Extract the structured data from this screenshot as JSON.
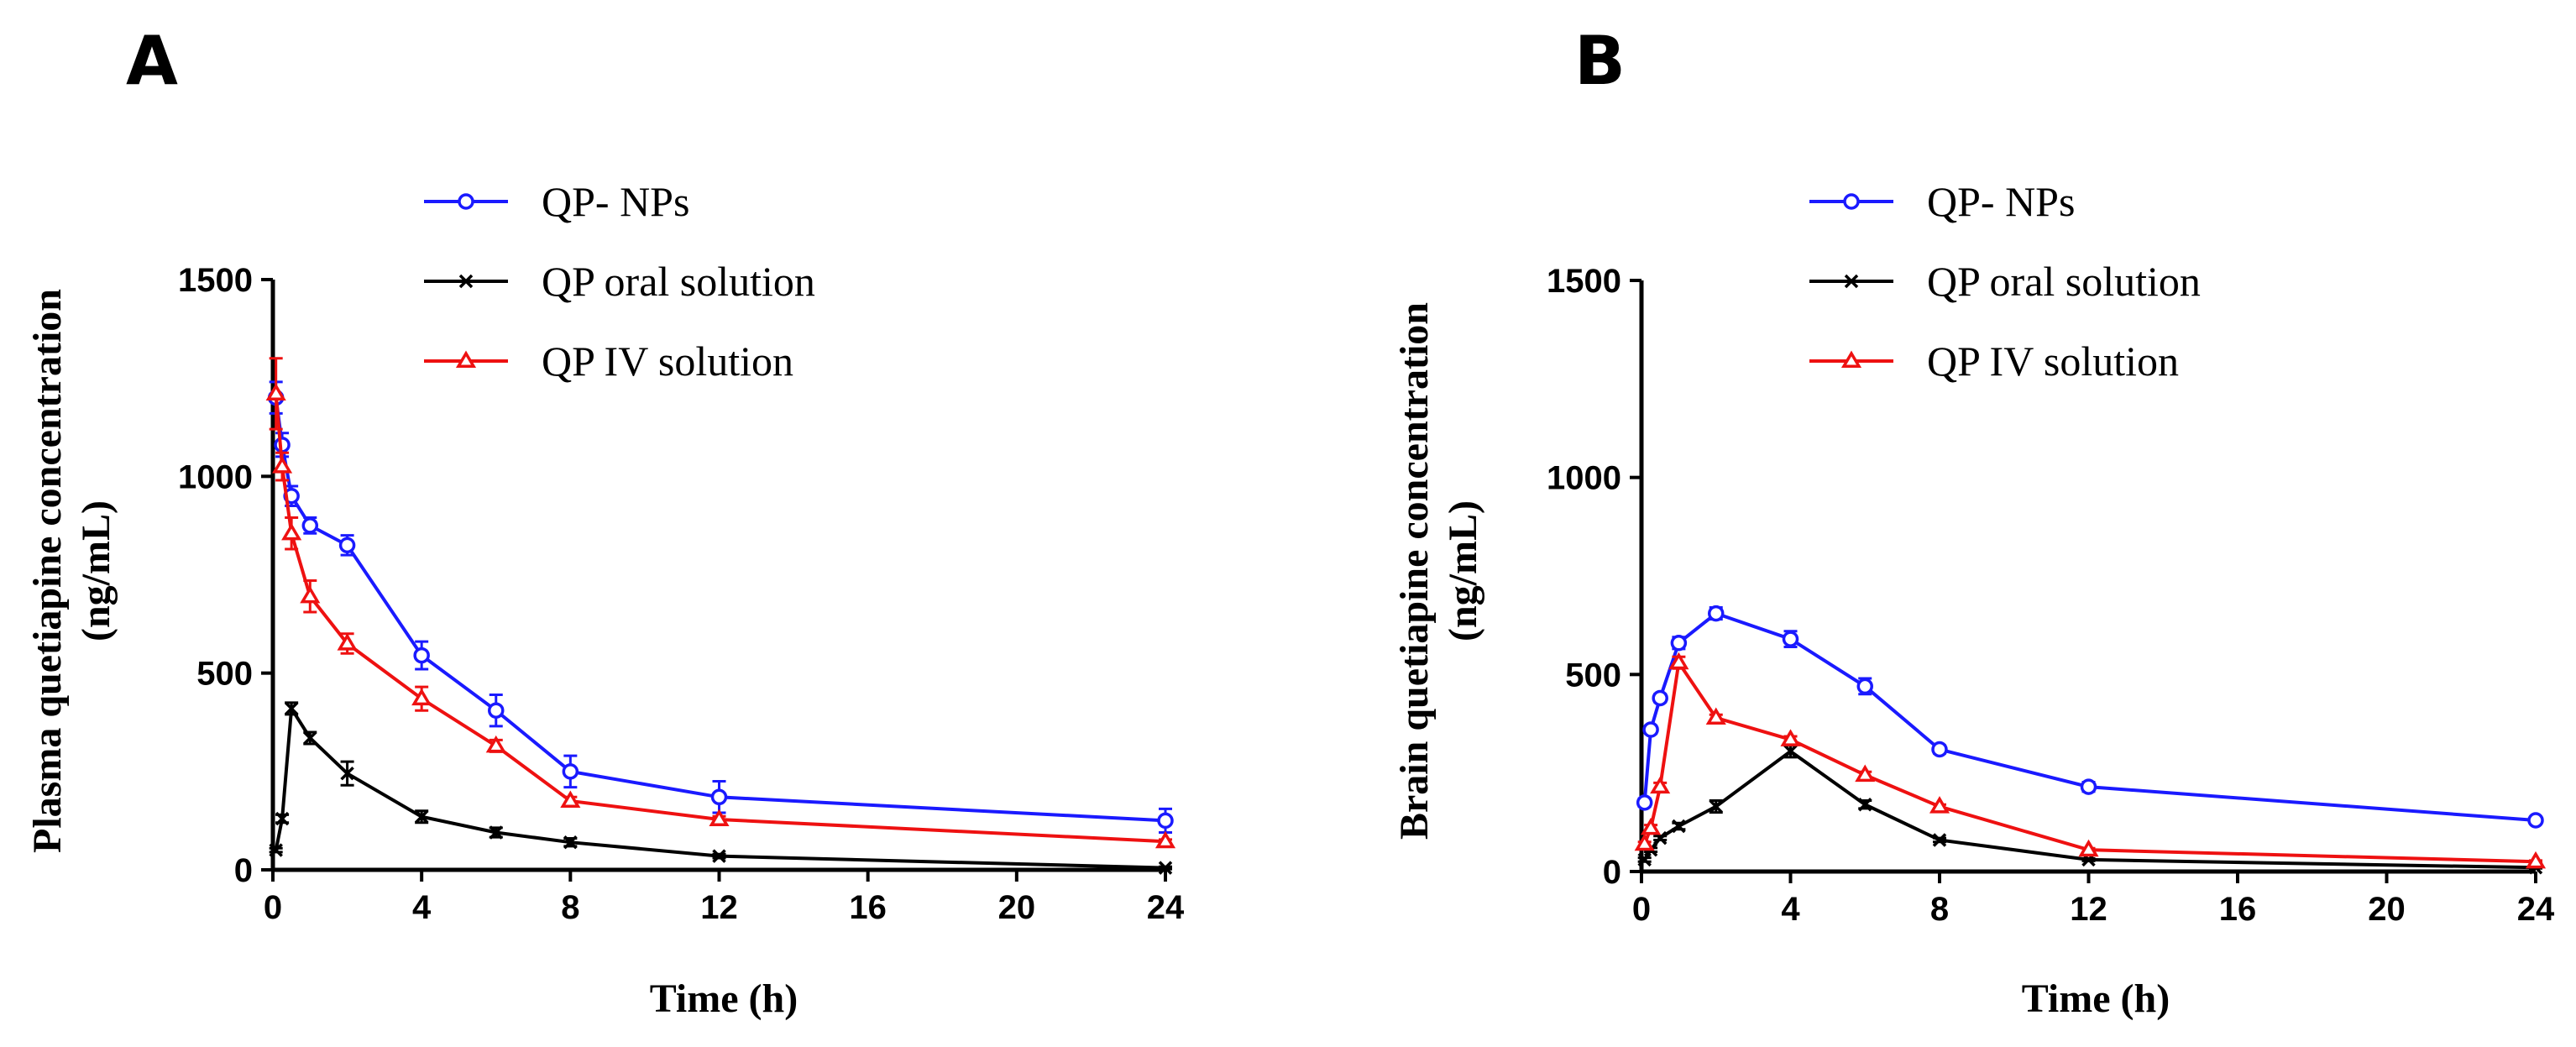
{
  "chart_data": [
    {
      "type": "line",
      "panel_label": "A",
      "xlabel": "Time (h)",
      "ylabel_lines": [
        "Plasma quetiapine concentration",
        "(ng/mL)"
      ],
      "xlim": [
        0,
        24
      ],
      "ylim": [
        0,
        1500
      ],
      "xticks": [
        0,
        4,
        8,
        12,
        16,
        20,
        24
      ],
      "yticks": [
        0,
        500,
        1000,
        1500
      ],
      "legend_position": "top-center",
      "series": [
        {
          "name": "QP- NPs",
          "color": "#1a1aff",
          "marker": "circle",
          "x": [
            0.083,
            0.25,
            0.5,
            1,
            2,
            4,
            6,
            8,
            12,
            24
          ],
          "y": [
            1200,
            1080,
            950,
            875,
            825,
            545,
            405,
            250,
            185,
            125
          ],
          "err": [
            40,
            30,
            25,
            20,
            25,
            35,
            40,
            40,
            40,
            30
          ]
        },
        {
          "name": "QP oral solution",
          "color": "#000000",
          "marker": "x",
          "x": [
            0.083,
            0.25,
            0.5,
            1,
            2,
            4,
            6,
            8,
            12,
            24
          ],
          "y": [
            50,
            130,
            410,
            335,
            245,
            135,
            95,
            70,
            35,
            5
          ],
          "err": [
            5,
            10,
            15,
            15,
            30,
            15,
            12,
            10,
            5,
            3
          ]
        },
        {
          "name": "QP IV solution",
          "color": "#ee1111",
          "marker": "triangle",
          "x": [
            0.083,
            0.25,
            0.5,
            1,
            2,
            4,
            6,
            8,
            12,
            24
          ],
          "y": [
            1210,
            1025,
            855,
            695,
            575,
            435,
            315,
            175,
            128,
            72
          ],
          "err": [
            90,
            35,
            40,
            40,
            25,
            30,
            15,
            10,
            8,
            5
          ]
        }
      ]
    },
    {
      "type": "line",
      "panel_label": "B",
      "xlabel": "Time (h)",
      "ylabel_lines": [
        "Brain quetiapine concentration",
        "(ng/mL)"
      ],
      "xlim": [
        0,
        24
      ],
      "ylim": [
        0,
        1500
      ],
      "xticks": [
        0,
        4,
        8,
        12,
        16,
        20,
        24
      ],
      "yticks": [
        0,
        500,
        1000,
        1500
      ],
      "legend_position": "top-center",
      "series": [
        {
          "name": "QP- NPs",
          "color": "#1a1aff",
          "marker": "circle",
          "x": [
            0.083,
            0.25,
            0.5,
            1,
            2,
            4,
            6,
            8,
            12,
            24
          ],
          "y": [
            175,
            360,
            440,
            580,
            655,
            590,
            470,
            310,
            215,
            130
          ],
          "err": [
            10,
            10,
            10,
            15,
            15,
            20,
            20,
            10,
            12,
            5
          ]
        },
        {
          "name": "QP oral solution",
          "color": "#000000",
          "marker": "x",
          "x": [
            0.083,
            0.25,
            0.5,
            1,
            2,
            4,
            6,
            8,
            12,
            24
          ],
          "y": [
            30,
            55,
            85,
            115,
            165,
            305,
            170,
            80,
            30,
            10
          ],
          "err": [
            5,
            5,
            5,
            8,
            15,
            15,
            10,
            5,
            3,
            2
          ]
        },
        {
          "name": "QP IV solution",
          "color": "#ee1111",
          "marker": "triangle",
          "x": [
            0.083,
            0.25,
            0.5,
            1,
            2,
            4,
            6,
            8,
            12,
            24
          ],
          "y": [
            70,
            110,
            215,
            530,
            390,
            335,
            245,
            165,
            55,
            25
          ],
          "err": [
            5,
            8,
            10,
            15,
            8,
            8,
            8,
            5,
            4,
            3
          ]
        }
      ]
    }
  ]
}
